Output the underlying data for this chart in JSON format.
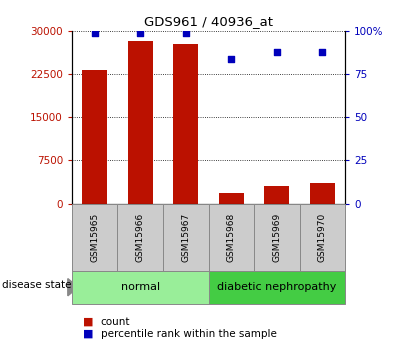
{
  "title": "GDS961 / 40936_at",
  "samples": [
    "GSM15965",
    "GSM15966",
    "GSM15967",
    "GSM15968",
    "GSM15969",
    "GSM15970"
  ],
  "counts": [
    23200,
    28200,
    27800,
    1900,
    3100,
    3600
  ],
  "percentile_ranks": [
    99,
    99,
    99,
    84,
    88,
    88
  ],
  "normal_color": "#99ee99",
  "nephropathy_color": "#44cc44",
  "bar_color": "#bb1100",
  "dot_color": "#0000bb",
  "ylim_left": [
    0,
    30000
  ],
  "ylim_right": [
    0,
    100
  ],
  "yticks_left": [
    0,
    7500,
    15000,
    22500,
    30000
  ],
  "ytick_labels_left": [
    "0",
    "7500",
    "15000",
    "22500",
    "30000"
  ],
  "yticks_right": [
    0,
    25,
    50,
    75,
    100
  ],
  "ytick_labels_right": [
    "0",
    "25",
    "50",
    "75",
    "100%"
  ],
  "bar_color_hex": "#bb1100",
  "dot_color_hex": "#0000bb",
  "legend_count": "count",
  "legend_percentile": "percentile rank within the sample",
  "bar_width": 0.55
}
